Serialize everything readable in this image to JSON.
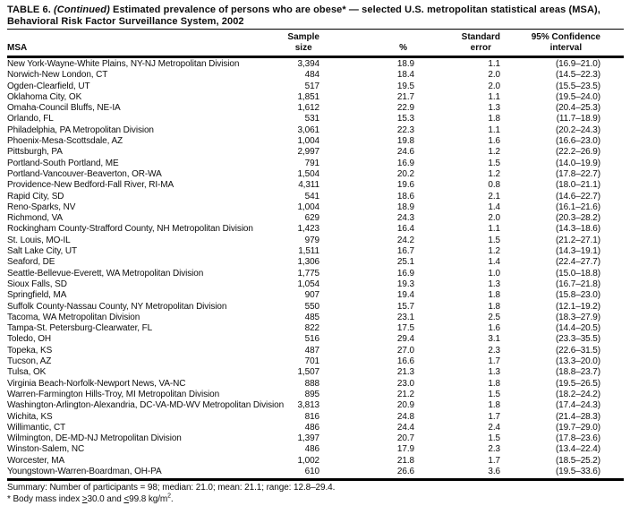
{
  "colors": {
    "text": "#0d0d0d",
    "background": "#ffffff",
    "rule": "#000000"
  },
  "title": {
    "label": "TABLE 6.",
    "continued": "(Continued)",
    "rest": "Estimated prevalence of persons who are obese* — selected U.S. metropolitan statistical areas (MSA),",
    "line2": "Behavioral Risk Factor Surveillance System, 2002"
  },
  "table": {
    "header": {
      "msa": "MSA",
      "sample": {
        "l1": "Sample",
        "l2": "size"
      },
      "pct": "%",
      "se": {
        "l1": "Standard",
        "l2": "error"
      },
      "ci": {
        "l1": "95% Confidence",
        "l2": "interval"
      }
    },
    "rows": [
      {
        "msa": "New York-Wayne-White Plains, NY-NJ Metropolitan Division",
        "n": "3,394",
        "pct": "18.9",
        "se": "1.1",
        "ci": "(16.9–21.0)"
      },
      {
        "msa": "Norwich-New London, CT",
        "n": "484",
        "pct": "18.4",
        "se": "2.0",
        "ci": "(14.5–22.3)"
      },
      {
        "msa": "Ogden-Clearfield, UT",
        "n": "517",
        "pct": "19.5",
        "se": "2.0",
        "ci": "(15.5–23.5)"
      },
      {
        "msa": "Oklahoma City, OK",
        "n": "1,851",
        "pct": "21.7",
        "se": "1.1",
        "ci": "(19.5–24.0)"
      },
      {
        "msa": "Omaha-Council Bluffs, NE-IA",
        "n": "1,612",
        "pct": "22.9",
        "se": "1.3",
        "ci": "(20.4–25.3)"
      },
      {
        "msa": "Orlando, FL",
        "n": "531",
        "pct": "15.3",
        "se": "1.8",
        "ci": "(11.7–18.9)"
      },
      {
        "msa": "Philadelphia, PA Metropolitan Division",
        "n": "3,061",
        "pct": "22.3",
        "se": "1.1",
        "ci": "(20.2–24.3)"
      },
      {
        "msa": "Phoenix-Mesa-Scottsdale, AZ",
        "n": "1,004",
        "pct": "19.8",
        "se": "1.6",
        "ci": "(16.6–23.0)"
      },
      {
        "msa": "Pittsburgh, PA",
        "n": "2,997",
        "pct": "24.6",
        "se": "1.2",
        "ci": "(22.2–26.9)"
      },
      {
        "msa": "Portland-South Portland, ME",
        "n": "791",
        "pct": "16.9",
        "se": "1.5",
        "ci": "(14.0–19.9)"
      },
      {
        "msa": "Portland-Vancouver-Beaverton, OR-WA",
        "n": "1,504",
        "pct": "20.2",
        "se": "1.2",
        "ci": "(17.8–22.7)"
      },
      {
        "msa": "Providence-New Bedford-Fall River, RI-MA",
        "n": "4,311",
        "pct": "19.6",
        "se": "0.8",
        "ci": "(18.0–21.1)"
      },
      {
        "msa": "Rapid City, SD",
        "n": "541",
        "pct": "18.6",
        "se": "2.1",
        "ci": "(14.6–22.7)"
      },
      {
        "msa": "Reno-Sparks, NV",
        "n": "1,004",
        "pct": "18.9",
        "se": "1.4",
        "ci": "(16.1–21.6)"
      },
      {
        "msa": "Richmond, VA",
        "n": "629",
        "pct": "24.3",
        "se": "2.0",
        "ci": "(20.3–28.2)"
      },
      {
        "msa": "Rockingham County-Strafford County, NH Metropolitan Division",
        "n": "1,423",
        "pct": "16.4",
        "se": "1.1",
        "ci": "(14.3–18.6)"
      },
      {
        "msa": "St. Louis, MO-IL",
        "n": "979",
        "pct": "24.2",
        "se": "1.5",
        "ci": "(21.2–27.1)"
      },
      {
        "msa": "Salt Lake City, UT",
        "n": "1,511",
        "pct": "16.7",
        "se": "1.2",
        "ci": "(14.3–19.1)"
      },
      {
        "msa": "Seaford, DE",
        "n": "1,306",
        "pct": "25.1",
        "se": "1.4",
        "ci": "(22.4–27.7)"
      },
      {
        "msa": "Seattle-Bellevue-Everett, WA Metropolitan Division",
        "n": "1,775",
        "pct": "16.9",
        "se": "1.0",
        "ci": "(15.0–18.8)"
      },
      {
        "msa": "Sioux Falls, SD",
        "n": "1,054",
        "pct": "19.3",
        "se": "1.3",
        "ci": "(16.7–21.8)"
      },
      {
        "msa": "Springfield, MA",
        "n": "907",
        "pct": "19.4",
        "se": "1.8",
        "ci": "(15.8–23.0)"
      },
      {
        "msa": "Suffolk County-Nassau County, NY Metropolitan Division",
        "n": "550",
        "pct": "15.7",
        "se": "1.8",
        "ci": "(12.1–19.2)"
      },
      {
        "msa": "Tacoma, WA Metropolitan Division",
        "n": "485",
        "pct": "23.1",
        "se": "2.5",
        "ci": "(18.3–27.9)"
      },
      {
        "msa": "Tampa-St. Petersburg-Clearwater, FL",
        "n": "822",
        "pct": "17.5",
        "se": "1.6",
        "ci": "(14.4–20.5)"
      },
      {
        "msa": "Toledo, OH",
        "n": "516",
        "pct": "29.4",
        "se": "3.1",
        "ci": "(23.3–35.5)"
      },
      {
        "msa": "Topeka, KS",
        "n": "487",
        "pct": "27.0",
        "se": "2.3",
        "ci": "(22.6–31.5)"
      },
      {
        "msa": "Tucson, AZ",
        "n": "701",
        "pct": "16.6",
        "se": "1.7",
        "ci": "(13.3–20.0)"
      },
      {
        "msa": "Tulsa, OK",
        "n": "1,507",
        "pct": "21.3",
        "se": "1.3",
        "ci": "(18.8–23.7)"
      },
      {
        "msa": "Virginia Beach-Norfolk-Newport News, VA-NC",
        "n": "888",
        "pct": "23.0",
        "se": "1.8",
        "ci": "(19.5–26.5)"
      },
      {
        "msa": "Warren-Farmington Hills-Troy, MI Metropolitan Division",
        "n": "895",
        "pct": "21.2",
        "se": "1.5",
        "ci": "(18.2–24.2)"
      },
      {
        "msa": "Washington-Arlington-Alexandria, DC-VA-MD-WV Metropolitan Division",
        "n": "3,813",
        "pct": "20.9",
        "se": "1.8",
        "ci": "(17.4–24.3)"
      },
      {
        "msa": "Wichita, KS",
        "n": "816",
        "pct": "24.8",
        "se": "1.7",
        "ci": "(21.4–28.3)"
      },
      {
        "msa": "Willimantic, CT",
        "n": "486",
        "pct": "24.4",
        "se": "2.4",
        "ci": "(19.7–29.0)"
      },
      {
        "msa": "Wilmington, DE-MD-NJ Metropolitan Division",
        "n": "1,397",
        "pct": "20.7",
        "se": "1.5",
        "ci": "(17.8–23.6)"
      },
      {
        "msa": "Winston-Salem, NC",
        "n": "486",
        "pct": "17.9",
        "se": "2.3",
        "ci": "(13.4–22.4)"
      },
      {
        "msa": "Worcester, MA",
        "n": "1,002",
        "pct": "21.8",
        "se": "1.7",
        "ci": "(18.5–25.2)"
      },
      {
        "msa": "Youngstown-Warren-Boardman, OH-PA",
        "n": "610",
        "pct": "26.6",
        "se": "3.6",
        "ci": "(19.5–33.6)"
      }
    ]
  },
  "summary": "Summary: Number of participants = 98; median: 21.0; mean: 21.1; range: 12.8–29.4.",
  "footnote": {
    "text_before": "* Body mass index ",
    "gte": ">",
    "mid": "30.0 and ",
    "lte": "<",
    "after": "99.8 kg/m",
    "sup": "2",
    "end": "."
  }
}
